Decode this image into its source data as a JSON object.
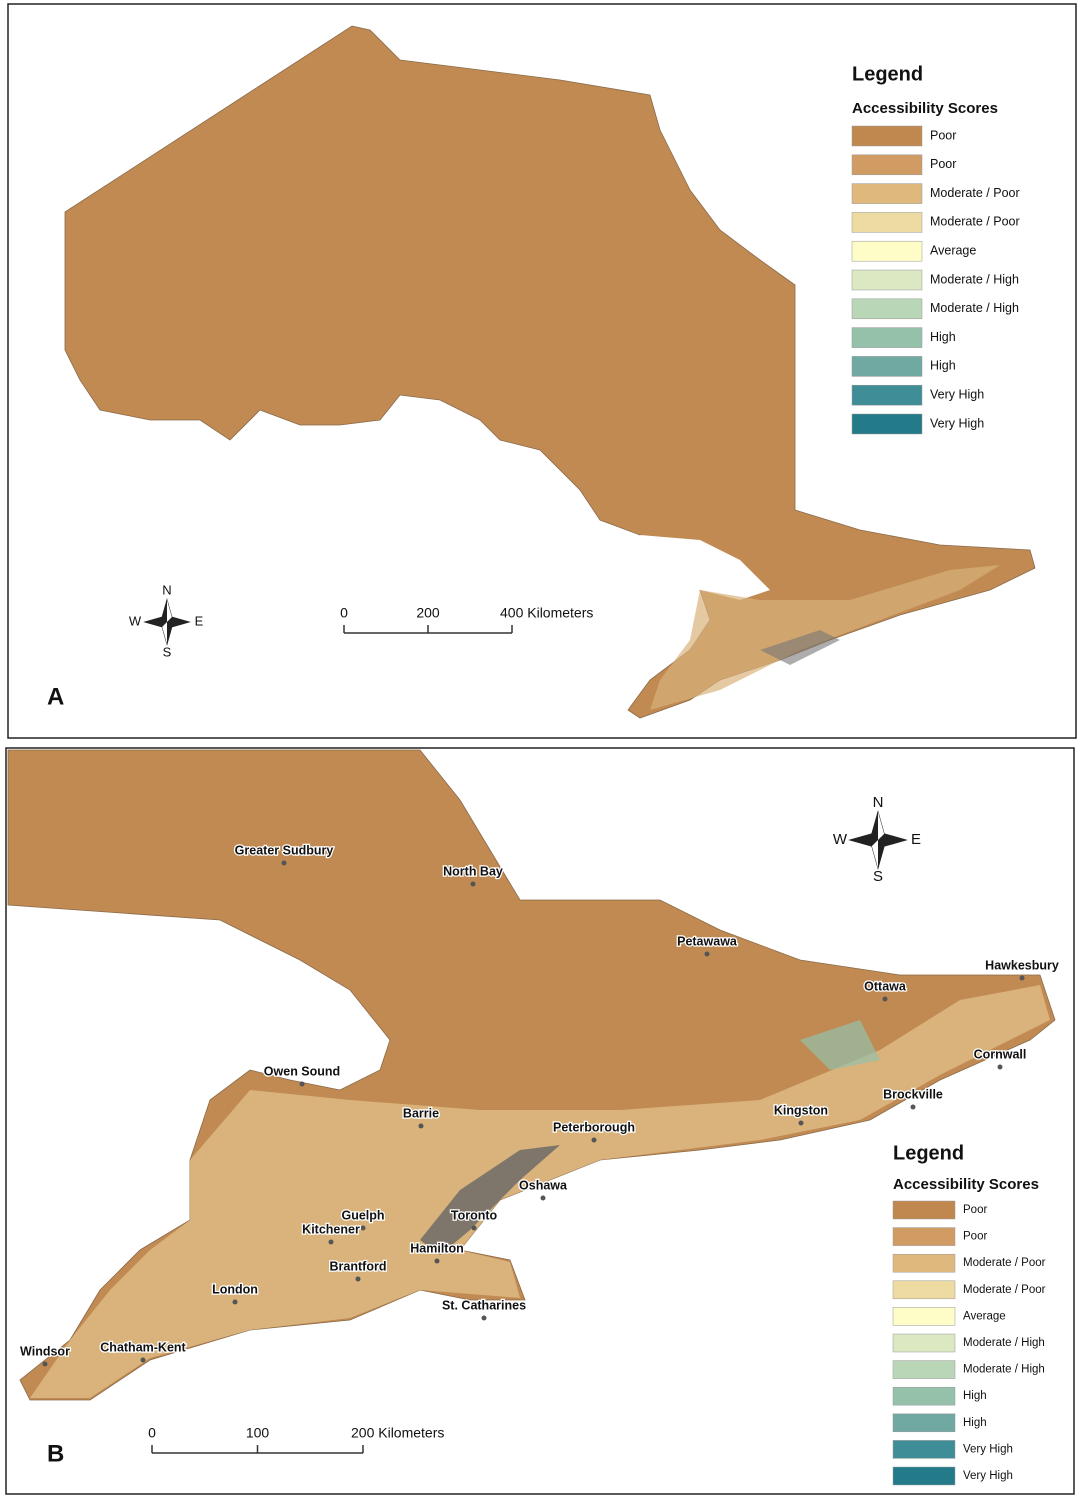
{
  "panels": [
    {
      "label": "A",
      "scale": [
        "0",
        "200",
        "400 Kilometers"
      ],
      "compass": [
        "N",
        "E",
        "S",
        "W"
      ],
      "cities": []
    },
    {
      "label": "B",
      "scale": [
        "0",
        "100",
        "200 Kilometers"
      ],
      "compass": [
        "N",
        "E",
        "S",
        "W"
      ],
      "cities": [
        "Greater Sudbury",
        "North Bay",
        "Petawawa",
        "Hawkesbury",
        "Ottawa",
        "Cornwall",
        "Owen Sound",
        "Brockville",
        "Barrie",
        "Kingston",
        "Peterborough",
        "Oshawa",
        "Guelph",
        "Toronto",
        "Kitchener",
        "Hamilton",
        "Brantford",
        "London",
        "St. Catharines",
        "Windsor",
        "Chatham-Kent"
      ]
    }
  ],
  "legend": {
    "title": "Legend",
    "subtitle": "Accessibility Scores",
    "items": [
      {
        "label": "Poor",
        "color": "#c0874f"
      },
      {
        "label": "Poor",
        "color": "#d09c64"
      },
      {
        "label": "Moderate / Poor",
        "color": "#dfb87e"
      },
      {
        "label": "Moderate / Poor",
        "color": "#eedba2"
      },
      {
        "label": "Average",
        "color": "#fefdc8"
      },
      {
        "label": "Moderate / High",
        "color": "#dbe8c2"
      },
      {
        "label": "Moderate / High",
        "color": "#b9d6b7"
      },
      {
        "label": "High",
        "color": "#95c1ab"
      },
      {
        "label": "High",
        "color": "#6fa9a1"
      },
      {
        "label": "Very High",
        "color": "#3f8e97"
      },
      {
        "label": "Very High",
        "color": "#237a89"
      }
    ]
  }
}
